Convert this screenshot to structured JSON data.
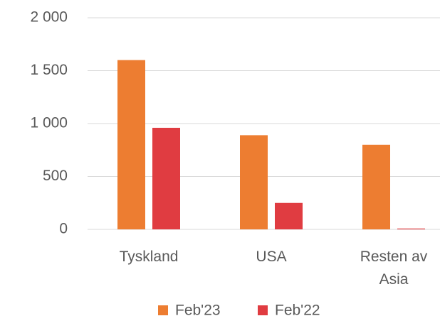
{
  "chart_data": {
    "type": "bar",
    "categories": [
      "Tyskland",
      "USA",
      "Resten av Asia"
    ],
    "series": [
      {
        "name": "Feb'23",
        "color": "#ED7D31",
        "values": [
          1600,
          890,
          800
        ]
      },
      {
        "name": "Feb'22",
        "color": "#E03C41",
        "values": [
          960,
          250,
          8
        ]
      }
    ],
    "ylim": [
      0,
      2000
    ],
    "yticks": [
      0,
      500,
      {
        "value": 1000,
        "label": "1 000"
      },
      {
        "value": 1500,
        "label": "1 500"
      },
      {
        "value": 2000,
        "label": "2 000"
      }
    ],
    "grid": true,
    "legend": "bottom"
  }
}
